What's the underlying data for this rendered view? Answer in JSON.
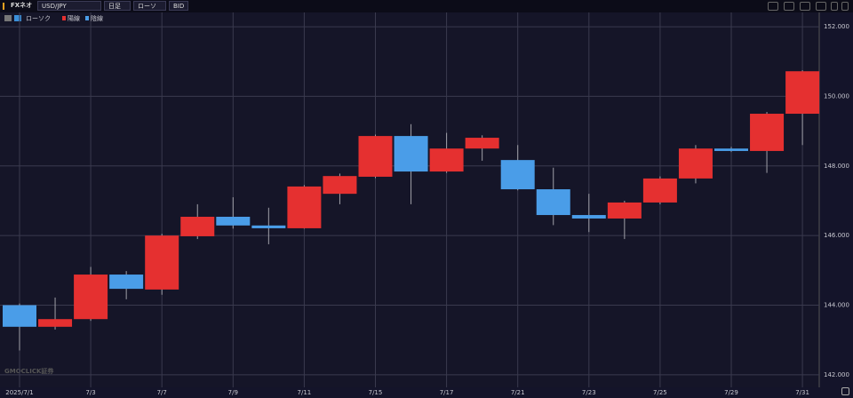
{
  "toolbar": {
    "product": "FXネオ",
    "pair": "USD/JPY",
    "period": "日足",
    "chart_type": "ローソク",
    "price_type": "BID"
  },
  "watermark": "GMOCLICK証券",
  "chart_data": {
    "type": "candlestick",
    "legend_title": "ローソク",
    "categories": [
      "2025/7/1",
      null,
      "7/3",
      null,
      "7/7",
      null,
      "7/9",
      null,
      "7/11",
      null,
      "7/15",
      null,
      "7/17",
      null,
      "7/21",
      null,
      "7/23",
      null,
      "7/25",
      null,
      "7/29",
      null,
      "7/31"
    ],
    "open": [
      144.0,
      143.38,
      143.6,
      144.88,
      144.45,
      145.98,
      146.54,
      146.29,
      146.21,
      147.2,
      147.69,
      148.86,
      147.84,
      148.5,
      148.17,
      147.33,
      146.59,
      146.49,
      146.95,
      147.64,
      148.5,
      148.43,
      149.5
    ],
    "high": [
      144.05,
      144.22,
      145.1,
      144.98,
      146.05,
      146.9,
      147.1,
      146.8,
      147.45,
      147.78,
      148.9,
      149.2,
      148.95,
      148.88,
      148.6,
      147.95,
      147.2,
      147.0,
      147.7,
      148.6,
      148.55,
      149.55,
      150.75
    ],
    "low": [
      142.7,
      143.3,
      143.55,
      144.17,
      144.3,
      145.9,
      146.2,
      145.75,
      146.2,
      146.9,
      147.65,
      146.9,
      147.8,
      148.15,
      147.3,
      146.3,
      146.1,
      145.9,
      146.9,
      147.5,
      148.4,
      147.8,
      148.6
    ],
    "close": [
      143.38,
      143.6,
      144.88,
      144.47,
      146.0,
      146.54,
      146.29,
      146.21,
      147.41,
      147.71,
      148.86,
      147.84,
      148.5,
      148.81,
      147.33,
      146.59,
      146.49,
      146.95,
      147.64,
      148.5,
      148.43,
      149.5,
      150.72
    ],
    "up": {
      "name": "陽線",
      "color": "#e53030"
    },
    "down": {
      "name": "陰線",
      "color": "#4a9de8"
    },
    "wick_color": "#a0a0a8",
    "ylim": [
      141.64,
      152.41
    ],
    "yticks": [
      {
        "value": 142,
        "label": "142.000"
      },
      {
        "value": 144,
        "label": "144.000"
      },
      {
        "value": 146,
        "label": "146.000"
      },
      {
        "value": 148,
        "label": "148.000"
      },
      {
        "value": 150,
        "label": "150.000"
      },
      {
        "value": 152,
        "label": "152.000"
      }
    ],
    "grid": true
  }
}
